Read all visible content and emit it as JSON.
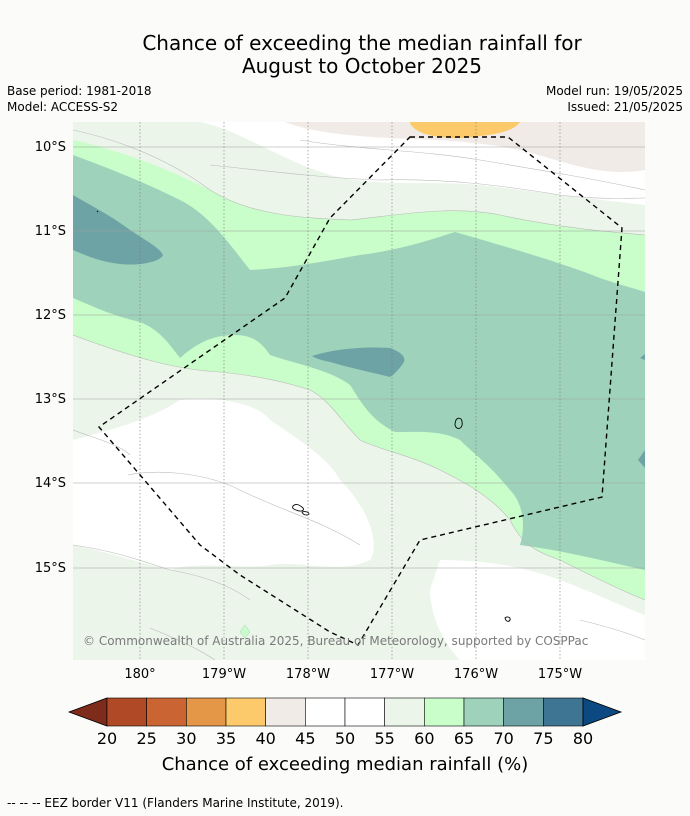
{
  "title": {
    "line1": "Chance of exceeding the median rainfall for",
    "line2": "August to October 2025"
  },
  "meta": {
    "base_period": "Base period: 1981-2018",
    "model": "Model: ACCESS-S2",
    "model_run": "Model run: 19/05/2025",
    "issued": "Issued: 21/05/2025"
  },
  "map": {
    "lat_labels": [
      "10°S",
      "11°S",
      "12°S",
      "13°S",
      "14°S",
      "15°S"
    ],
    "lon_labels": [
      "180°",
      "179°W",
      "178°W",
      "177°W",
      "176°W",
      "175°W"
    ],
    "copyright": "© Commonwealth of Australia 2025, Bureau of Meteorology, supported by COSPPac"
  },
  "colorbar": {
    "title": "Chance of exceeding median rainfall (%)",
    "ticks": [
      "20",
      "25",
      "30",
      "35",
      "40",
      "45",
      "50",
      "55",
      "60",
      "65",
      "70",
      "75",
      "80"
    ],
    "colors": [
      "#7f2b1c",
      "#b04a26",
      "#ca6433",
      "#e39747",
      "#fdca6b",
      "#f1ebe7",
      "#ffffff",
      "#ffffff",
      "#ebf5ea",
      "#c9fdc9",
      "#9ed2bb",
      "#6ea3a6",
      "#3e7592",
      "#0c4882"
    ]
  },
  "footnote": "--  --  -- EEZ border V11 (Flanders Marine Institute, 2019)."
}
